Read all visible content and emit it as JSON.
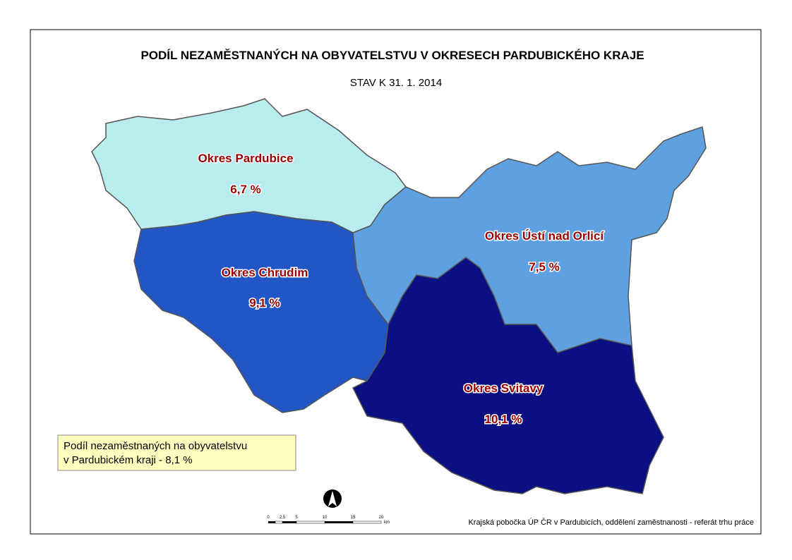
{
  "title": "PODÍL NEZAMĚSTNANÝCH NA OBYVATELSTVU V OKRESECH PARDUBICKÉHO KRAJE",
  "subtitle": "STAV K 31. 1. 2014",
  "districts": [
    {
      "name": "Okres Pardubice",
      "value": "6,7  %"
    },
    {
      "name": "Okres Chrudim",
      "value": "9,1  %"
    },
    {
      "name": "Okres Ústí nad Orlicí",
      "value": "7,5  %"
    },
    {
      "name": "Okres Svitavy",
      "value": "10,1  %"
    }
  ],
  "note": [
    "Podíl nezaměstnaných na obyvatelstvu",
    "v Pardubickém kraji - 8,1 %"
  ],
  "scale": [
    "0",
    "2,5",
    "5",
    "10",
    "15",
    "20",
    "km"
  ],
  "source": "Krajská pobočka ÚP ČR v Pardubicích, oddělení zaměstnanosti - referát trhu práce"
}
